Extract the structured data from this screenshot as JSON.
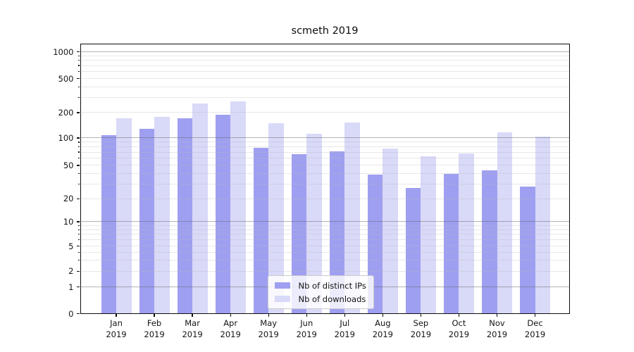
{
  "figure": {
    "title": "scmeth 2019"
  },
  "chart_data": {
    "type": "bar",
    "title": "scmeth 2019",
    "categories": [
      "Jan 2019",
      "Feb 2019",
      "Mar 2019",
      "Apr 2019",
      "May 2019",
      "Jun 2019",
      "Jul 2019",
      "Aug 2019",
      "Sep 2019",
      "Oct 2019",
      "Nov 2019",
      "Dec 2019"
    ],
    "series": [
      {
        "name": "Nb of distinct IPs",
        "color": "#9f9ff1",
        "values": [
          108,
          128,
          173,
          190,
          78,
          67,
          71,
          39,
          27,
          40,
          44,
          28
        ]
      },
      {
        "name": "Nb of downloads",
        "color": "#d9d9f8",
        "values": [
          170,
          178,
          258,
          272,
          149,
          113,
          154,
          76,
          63,
          68,
          116,
          103
        ]
      }
    ],
    "xlabel": "",
    "ylabel": "",
    "yscale": "symlog",
    "yticks": [
      0,
      1,
      2,
      5,
      10,
      20,
      50,
      100,
      200,
      500,
      1000
    ],
    "ylim": [
      0,
      1000
    ],
    "grid": true,
    "legend_position": "lower center",
    "colors": {
      "major_grid": "#b0b0b0",
      "minor_grid": "#e9e9e9",
      "spine": "#0d0d0d",
      "background": "#ffffff"
    }
  }
}
